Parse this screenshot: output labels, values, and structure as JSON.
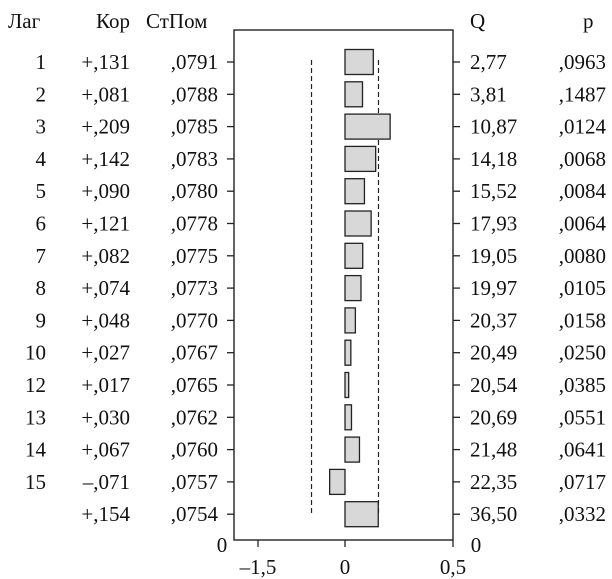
{
  "chart_data": {
    "type": "bar",
    "orientation": "horizontal",
    "headers": {
      "lag": "Лаг",
      "corr": "Кор",
      "se": "СтПом",
      "q": "Q",
      "p": "p"
    },
    "rows": [
      {
        "lag": "1",
        "corr_label": "+,131",
        "se": ",0791",
        "q": "2,77",
        "p": ",0963",
        "value": 0.131
      },
      {
        "lag": "2",
        "corr_label": "+,081",
        "se": ",0788",
        "q": "3,81",
        "p": ",1487",
        "value": 0.081
      },
      {
        "lag": "3",
        "corr_label": "+,209",
        "se": ",0785",
        "q": "10,87",
        "p": ",0124",
        "value": 0.209
      },
      {
        "lag": "4",
        "corr_label": "+,142",
        "se": ",0783",
        "q": "14,18",
        "p": ",0068",
        "value": 0.142
      },
      {
        "lag": "5",
        "corr_label": "+,090",
        "se": ",0780",
        "q": "15,52",
        "p": ",0084",
        "value": 0.09
      },
      {
        "lag": "6",
        "corr_label": "+,121",
        "se": ",0778",
        "q": "17,93",
        "p": ",0064",
        "value": 0.121
      },
      {
        "lag": "7",
        "corr_label": "+,082",
        "se": ",0775",
        "q": "19,05",
        "p": ",0080",
        "value": 0.082
      },
      {
        "lag": "8",
        "corr_label": "+,074",
        "se": ",0773",
        "q": "19,97",
        "p": ",0105",
        "value": 0.074
      },
      {
        "lag": "9",
        "corr_label": "+,048",
        "se": ",0770",
        "q": "20,37",
        "p": ",0158",
        "value": 0.048
      },
      {
        "lag": "10",
        "corr_label": "+,027",
        "se": ",0767",
        "q": "20,49",
        "p": ",0250",
        "value": 0.027
      },
      {
        "lag": "12",
        "corr_label": "+,017",
        "se": ",0765",
        "q": "20,54",
        "p": ",0385",
        "value": 0.017
      },
      {
        "lag": "13",
        "corr_label": "+,030",
        "se": ",0762",
        "q": "20,69",
        "p": ",0551",
        "value": 0.03
      },
      {
        "lag": "14",
        "corr_label": "+,067",
        "se": ",0760",
        "q": "21,48",
        "p": ",0641",
        "value": 0.067
      },
      {
        "lag": "15",
        "corr_label": "–,071",
        "se": ",0757",
        "q": "22,35",
        "p": ",0717",
        "value": -0.071
      },
      {
        "lag": "",
        "corr_label": "+,154",
        "se": ",0754",
        "q": "36,50",
        "p": ",0332",
        "value": 0.154
      }
    ],
    "x_axis": {
      "range": [
        -1.5,
        0.5
      ],
      "ticks": [
        {
          "value": -1.5,
          "label": "–1,5"
        },
        {
          "value": 0,
          "label": "0"
        },
        {
          "value": 0.5,
          "label": "0,5"
        }
      ]
    },
    "bottom_labels": {
      "left": "0",
      "right": "0"
    },
    "confidence_limits": [
      -0.155,
      0.155
    ],
    "colors": {
      "bar_fill": "#d8d8d8",
      "bar_stroke": "#222222",
      "frame": "#222222"
    }
  }
}
